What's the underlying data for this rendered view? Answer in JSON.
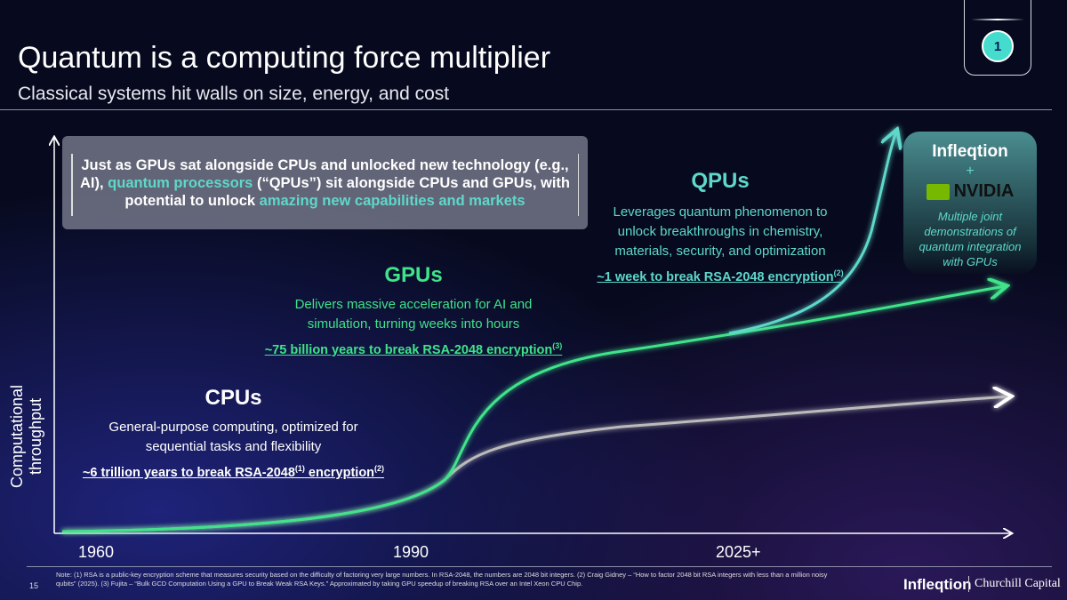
{
  "header": {
    "title": "Quantum is a computing force multiplier",
    "subtitle": "Classical systems hit walls on size, energy, and cost",
    "badge": "1"
  },
  "callout": {
    "part1": "Just as GPUs sat alongside CPUs and unlocked new technology (e.g., AI), ",
    "highlight1": "quantum processors",
    "part2": " (“QPUs”) sit alongside CPUs and GPUs, with potential to unlock ",
    "highlight2": "amazing new capabilities and markets"
  },
  "cpus": {
    "title": "CPUs",
    "desc": "General-purpose computing, optimized for sequential tasks and flexibility",
    "stat_a": "~6 trillion years to break RSA-2048",
    "sup_a": "(1)",
    "stat_b": " encryption",
    "sup_b": "(2)"
  },
  "gpus": {
    "title": "GPUs",
    "desc": "Delivers massive acceleration for AI and simulation, turning weeks into hours",
    "stat": "~75 billion years to break RSA-2048 encryption",
    "sup": "(3)"
  },
  "qpus": {
    "title": "QPUs",
    "desc": "Leverages quantum phenomenon to unlock breakthroughs in chemistry, materials, security, and optimization",
    "stat": "~1 week to break RSA-2048 encryption",
    "sup": "(2)"
  },
  "partner": {
    "logo1": "Infleqtion",
    "plus": "+",
    "logo2": "NVIDIA",
    "text": "Multiple joint demonstrations of quantum integration with GPUs"
  },
  "axis": {
    "ylabel": "Computational throughput",
    "x_ticks": [
      "1960",
      "1990",
      "2025+"
    ]
  },
  "footer": {
    "note": "Note: (1) RSA is a public-key encryption scheme that measures security based on the difficulty of factoring very large numbers. In RSA-2048, the numbers are 2048 bit integers. (2) Craig Gidney – “How to factor 2048 bit RSA integers with less than a million noisy qubits” (2025). (3) Fujita – “Bulk GCD Computation Using a GPU to Break Weak RSA Keys.” Approximated by taking GPU speedup of breaking RSA over an Intel Xeon CPU Chip.",
    "page": "15",
    "logo": "Infleqtion",
    "partner": "Churchill Capital"
  },
  "colors": {
    "teal": "#5ed8cb",
    "green": "#3fe38a",
    "badge": "#45dccd"
  }
}
